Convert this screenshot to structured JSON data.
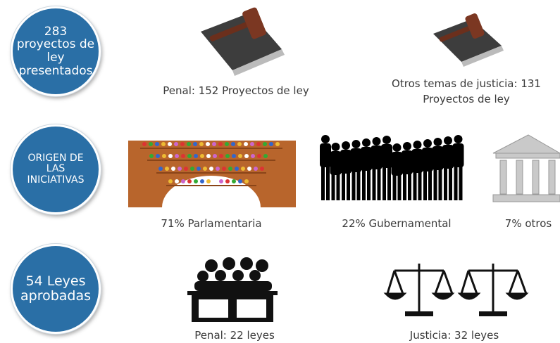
{
  "circles": [
    {
      "lines": [
        "283",
        "proyectos de",
        "ley",
        "presentados"
      ]
    },
    {
      "lines": [
        "ORIGEN DE",
        "LAS",
        "INICIATIVAS"
      ]
    },
    {
      "lines": [
        "54 Leyes",
        "aprobadas"
      ]
    }
  ],
  "rows": [
    {
      "items": [
        {
          "caption": [
            "Penal: 152 Proyectos de ley"
          ]
        },
        {
          "caption": [
            "Otros temas de justicia: 131",
            "Proyectos de ley"
          ]
        }
      ]
    },
    {
      "items": [
        {
          "caption": [
            "71% Parlamentaria"
          ]
        },
        {
          "caption": [
            "22% Gubernamental"
          ]
        },
        {
          "caption": [
            "7% otros"
          ]
        }
      ]
    },
    {
      "items": [
        {
          "caption": [
            "Penal: 22 leyes"
          ]
        },
        {
          "caption": [
            "Justicia: 32 leyes"
          ]
        }
      ]
    }
  ]
}
